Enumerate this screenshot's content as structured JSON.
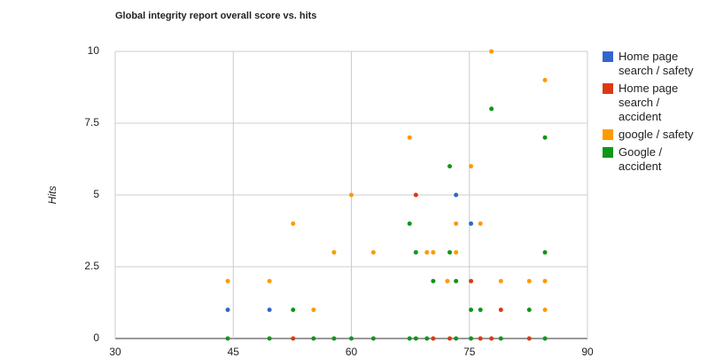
{
  "chart_data": {
    "type": "scatter",
    "title": "Global integrity report overall score vs. hits",
    "y_label": "Hits",
    "xlim": [
      30,
      90
    ],
    "xticks": [
      30,
      45,
      60,
      75,
      90
    ],
    "ylim": [
      0,
      10
    ],
    "yticks": [
      0,
      2.5,
      5,
      7.5,
      10
    ],
    "grid": true,
    "legend": "right",
    "series": [
      {
        "name": "Home page search / safety",
        "color": "#3366cc",
        "x": [
          44.3,
          49.6,
          73.3,
          75.2
        ],
        "values": [
          1,
          1,
          5,
          4
        ]
      },
      {
        "name": "Home page search / accident",
        "color": "#dc3912",
        "x": [
          52.6,
          68.2,
          75.2,
          79.0,
          70.4,
          72.5,
          76.4,
          77.8,
          82.6
        ],
        "values": [
          0,
          5,
          2,
          1,
          0,
          0,
          0,
          0,
          0
        ]
      },
      {
        "name": "google / safety",
        "color": "#ff9900",
        "x": [
          44.3,
          49.6,
          52.6,
          55.2,
          57.8,
          60.0,
          62.8,
          67.4,
          69.6,
          70.4,
          72.2,
          73.3,
          73.3,
          75.2,
          76.4,
          77.8,
          79.0,
          82.6,
          84.6,
          84.6,
          84.6
        ],
        "values": [
          2,
          2,
          4,
          1,
          3,
          5,
          3,
          7,
          3,
          3,
          2,
          3,
          4,
          6,
          4,
          10,
          2,
          2,
          9,
          2,
          1
        ]
      },
      {
        "name": "Google / accident",
        "color": "#109618",
        "x": [
          44.3,
          49.6,
          52.6,
          55.2,
          57.8,
          60.0,
          62.8,
          67.4,
          67.4,
          68.2,
          68.2,
          70.4,
          69.6,
          72.5,
          72.5,
          73.3,
          73.3,
          75.2,
          75.2,
          76.4,
          77.8,
          79.0,
          82.6,
          84.6,
          84.6,
          84.6
        ],
        "values": [
          0,
          0,
          1,
          0,
          0,
          0,
          0,
          4,
          0,
          3,
          0,
          2,
          0,
          6,
          3,
          2,
          0,
          1,
          0,
          1,
          8,
          0,
          1,
          7,
          3,
          0
        ]
      }
    ]
  }
}
